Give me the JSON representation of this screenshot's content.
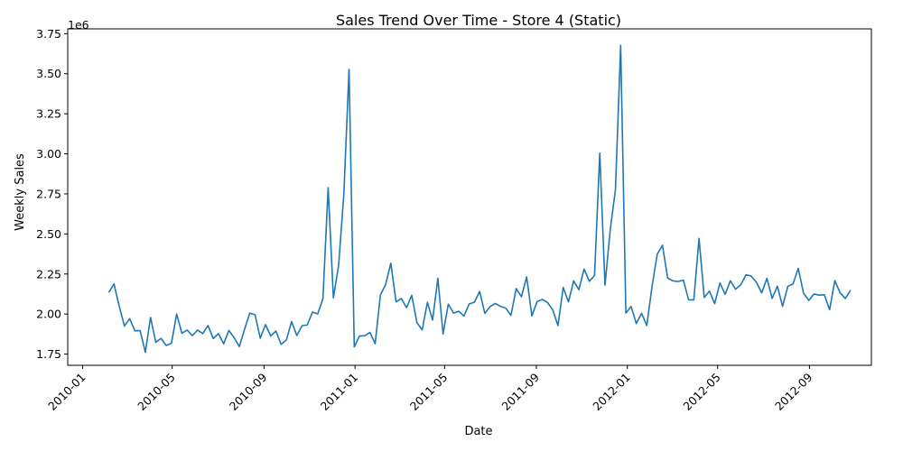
{
  "chart_data": {
    "type": "line",
    "title": "Sales Trend Over Time - Store 4 (Static)",
    "xlabel": "Date",
    "ylabel": "Weekly Sales",
    "y_offset_text": "1e6",
    "y_scale": 1000000,
    "xlim": [
      "2009-12-12",
      "2012-11-23"
    ],
    "ylim": [
      1.68,
      3.78
    ],
    "x_ticks": [
      {
        "date": "2010-01-01",
        "label": "2010-01"
      },
      {
        "date": "2010-05-01",
        "label": "2010-05"
      },
      {
        "date": "2010-09-01",
        "label": "2010-09"
      },
      {
        "date": "2011-01-01",
        "label": "2011-01"
      },
      {
        "date": "2011-05-01",
        "label": "2011-05"
      },
      {
        "date": "2011-09-01",
        "label": "2011-09"
      },
      {
        "date": "2012-01-01",
        "label": "2012-01"
      },
      {
        "date": "2012-05-01",
        "label": "2012-05"
      },
      {
        "date": "2012-09-01",
        "label": "2012-09"
      }
    ],
    "y_ticks": [
      {
        "value": 1.75,
        "label": "1.75"
      },
      {
        "value": 2.0,
        "label": "2.00"
      },
      {
        "value": 2.25,
        "label": "2.25"
      },
      {
        "value": 2.5,
        "label": "2.50"
      },
      {
        "value": 2.75,
        "label": "2.75"
      },
      {
        "value": 3.0,
        "label": "3.00"
      },
      {
        "value": 3.25,
        "label": "3.25"
      },
      {
        "value": 3.5,
        "label": "3.50"
      },
      {
        "value": 3.75,
        "label": "3.75"
      }
    ],
    "grid": false,
    "line_color": "#1f77b4",
    "series": [
      {
        "x": [
          "2010-02-05",
          "2010-02-12",
          "2010-02-19",
          "2010-02-26",
          "2010-03-05",
          "2010-03-12",
          "2010-03-19",
          "2010-03-26",
          "2010-04-02",
          "2010-04-09",
          "2010-04-16",
          "2010-04-23",
          "2010-04-30",
          "2010-05-07",
          "2010-05-14",
          "2010-05-21",
          "2010-05-28",
          "2010-06-04",
          "2010-06-11",
          "2010-06-18",
          "2010-06-25",
          "2010-07-02",
          "2010-07-09",
          "2010-07-16",
          "2010-07-23",
          "2010-07-30",
          "2010-08-06",
          "2010-08-13",
          "2010-08-20",
          "2010-08-27",
          "2010-09-03",
          "2010-09-10",
          "2010-09-17",
          "2010-09-24",
          "2010-10-01",
          "2010-10-08",
          "2010-10-15",
          "2010-10-22",
          "2010-10-29",
          "2010-11-05",
          "2010-11-12",
          "2010-11-19",
          "2010-11-26",
          "2010-12-03",
          "2010-12-10",
          "2010-12-17",
          "2010-12-24",
          "2010-12-31",
          "2011-01-07",
          "2011-01-14",
          "2011-01-21",
          "2011-01-28",
          "2011-02-04",
          "2011-02-11",
          "2011-02-18",
          "2011-02-25",
          "2011-03-04",
          "2011-03-11",
          "2011-03-18",
          "2011-03-25",
          "2011-04-01",
          "2011-04-08",
          "2011-04-15",
          "2011-04-22",
          "2011-04-29",
          "2011-05-06",
          "2011-05-13",
          "2011-05-20",
          "2011-05-27",
          "2011-06-03",
          "2011-06-10",
          "2011-06-17",
          "2011-06-24",
          "2011-07-01",
          "2011-07-08",
          "2011-07-15",
          "2011-07-22",
          "2011-07-29",
          "2011-08-05",
          "2011-08-12",
          "2011-08-19",
          "2011-08-26",
          "2011-09-02",
          "2011-09-09",
          "2011-09-16",
          "2011-09-23",
          "2011-09-30",
          "2011-10-07",
          "2011-10-14",
          "2011-10-21",
          "2011-10-28",
          "2011-11-04",
          "2011-11-11",
          "2011-11-18",
          "2011-11-25",
          "2011-12-02",
          "2011-12-09",
          "2011-12-16",
          "2011-12-23",
          "2011-12-30",
          "2012-01-06",
          "2012-01-13",
          "2012-01-20",
          "2012-01-27",
          "2012-02-03",
          "2012-02-10",
          "2012-02-17",
          "2012-02-24",
          "2012-03-02",
          "2012-03-09",
          "2012-03-16",
          "2012-03-23",
          "2012-03-30",
          "2012-04-06",
          "2012-04-13",
          "2012-04-20",
          "2012-04-27",
          "2012-05-04",
          "2012-05-11",
          "2012-05-18",
          "2012-05-25",
          "2012-06-01",
          "2012-06-08",
          "2012-06-15",
          "2012-06-22",
          "2012-06-29",
          "2012-07-06",
          "2012-07-13",
          "2012-07-20",
          "2012-07-27",
          "2012-08-03",
          "2012-08-10",
          "2012-08-17",
          "2012-08-24",
          "2012-08-31",
          "2012-09-07",
          "2012-09-14",
          "2012-09-21",
          "2012-09-28",
          "2012-10-05",
          "2012-10-12",
          "2012-10-19",
          "2012-10-26"
        ],
        "values": [
          2.135,
          2.188,
          2.05,
          1.925,
          1.971,
          1.895,
          1.897,
          1.761,
          1.979,
          1.824,
          1.848,
          1.804,
          1.818,
          2.0,
          1.88,
          1.9,
          1.865,
          1.9,
          1.878,
          1.928,
          1.847,
          1.878,
          1.814,
          1.898,
          1.852,
          1.797,
          1.905,
          2.006,
          1.996,
          1.849,
          1.934,
          1.863,
          1.894,
          1.811,
          1.838,
          1.953,
          1.866,
          1.927,
          1.932,
          2.012,
          2.001,
          2.096,
          2.789,
          2.101,
          2.303,
          2.746,
          3.527,
          1.795,
          1.863,
          1.865,
          1.885,
          1.815,
          2.118,
          2.184,
          2.317,
          2.076,
          2.097,
          2.04,
          2.117,
          1.946,
          1.901,
          2.073,
          1.963,
          2.223,
          1.876,
          2.062,
          2.006,
          2.017,
          1.988,
          2.063,
          2.074,
          2.141,
          2.004,
          2.047,
          2.066,
          2.048,
          2.037,
          1.992,
          2.159,
          2.108,
          2.232,
          1.988,
          2.078,
          2.091,
          2.072,
          2.026,
          1.928,
          2.166,
          2.076,
          2.207,
          2.152,
          2.281,
          2.204,
          2.241,
          3.005,
          2.18,
          2.525,
          2.776,
          3.677,
          2.006,
          2.047,
          1.941,
          2.005,
          1.928,
          2.171,
          2.373,
          2.429,
          2.224,
          2.207,
          2.203,
          2.212,
          2.089,
          2.088,
          2.472,
          2.103,
          2.143,
          2.065,
          2.194,
          2.123,
          2.208,
          2.155,
          2.183,
          2.245,
          2.237,
          2.198,
          2.132,
          2.223,
          2.098,
          2.174,
          2.048,
          2.173,
          2.188,
          2.285,
          2.131,
          2.085,
          2.125,
          2.118,
          2.12,
          2.027,
          2.209,
          2.133,
          2.097,
          2.149
        ]
      }
    ]
  }
}
